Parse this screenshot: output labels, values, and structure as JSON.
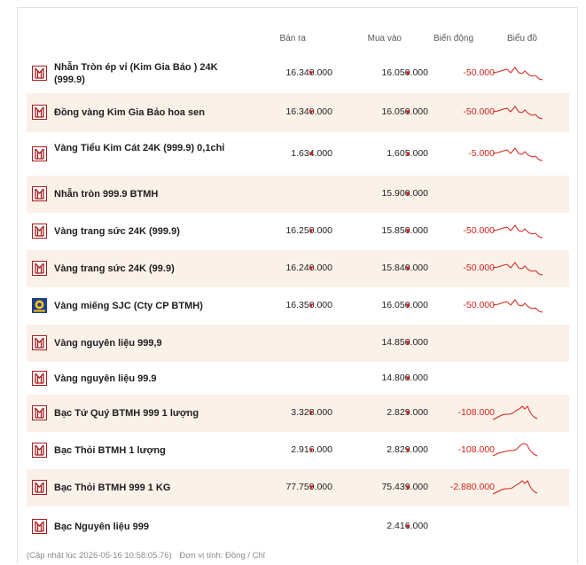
{
  "header": {
    "sell_label": "Bán ra",
    "buy_label": "Mua vào",
    "change_label": "Biến động",
    "chart_label": "Biểu đồ"
  },
  "colors": {
    "accent_red": "#d0241e",
    "alt_row_bg": "#faf1e9",
    "logo_red": "#a51c1c",
    "sjc_blue": "#1d3e8a"
  },
  "rows": [
    {
      "name": "Nhẫn Tròn ép vỉ (Kim Gia Bảo ) 24K (999.9)",
      "sell": "16.340.000",
      "buy": "16.050.000",
      "change": "-50.000",
      "logo": "btmh-logo-icon",
      "trend": "down"
    },
    {
      "name": "Đồng vàng Kim Gia Bảo hoa sen",
      "sell": "16.340.000",
      "buy": "16.050.000",
      "change": "-50.000",
      "logo": "btmh-logo-icon",
      "trend": "down"
    },
    {
      "name": "Vàng Tiểu Kim Cát 24K (999.9) 0,1chỉ",
      "sell": "1.634.000",
      "buy": "1.605.000",
      "change": "-5.000",
      "logo": "btmh-logo-icon",
      "trend": "down"
    },
    {
      "name": "Nhẫn tròn 999.9 BTMH",
      "sell": "",
      "buy": "15.900.000",
      "change": "",
      "logo": "btmh-logo-icon",
      "trend": ""
    },
    {
      "name": "Vàng trang sức 24K (999.9)",
      "sell": "16.250.000",
      "buy": "15.850.000",
      "change": "-50.000",
      "logo": "btmh-logo-icon",
      "trend": "down"
    },
    {
      "name": "Vàng trang sức 24K (99.9)",
      "sell": "16.240.000",
      "buy": "15.840.000",
      "change": "-50.000",
      "logo": "btmh-logo-icon",
      "trend": "down"
    },
    {
      "name": "Vàng miếng SJC (Cty CP BTMH)",
      "sell": "16.350.000",
      "buy": "16.050.000",
      "change": "-50.000",
      "logo": "sjc-logo-icon",
      "trend": "down"
    },
    {
      "name": "Vàng nguyên liệu 999,9",
      "sell": "",
      "buy": "14.850.000",
      "change": "",
      "logo": "btmh-logo-icon",
      "trend": ""
    },
    {
      "name": "Vàng nguyên liệu 99.9",
      "sell": "",
      "buy": "14.800.000",
      "change": "",
      "logo": "btmh-logo-icon",
      "trend": ""
    },
    {
      "name": "Bạc Tứ Quý BTMH 999 1 lượng",
      "sell": "3.328.000",
      "buy": "2.829.000",
      "change": "-108.000",
      "logo": "btmh-logo-icon",
      "trend": "peak"
    },
    {
      "name": "Bạc Thỏi BTMH 1 lượng",
      "sell": "2.916.000",
      "buy": "2.829.000",
      "change": "-108.000",
      "logo": "btmh-logo-icon",
      "trend": "peak2"
    },
    {
      "name": "Bạc Thỏi BTMH 999 1 KG",
      "sell": "77.759.000",
      "buy": "75.439.000",
      "change": "-2.880.000",
      "logo": "btmh-logo-icon",
      "trend": "peak"
    },
    {
      "name": "Bạc Nguyên liệu 999",
      "sell": "",
      "buy": "2.416.000",
      "change": "",
      "logo": "btmh-logo-icon",
      "trend": ""
    }
  ],
  "footer": {
    "updated": "(Cập nhật lúc 2026-05-16 10:58:05.76)",
    "unit": "Đơn vị tính: Đồng / Chỉ"
  }
}
